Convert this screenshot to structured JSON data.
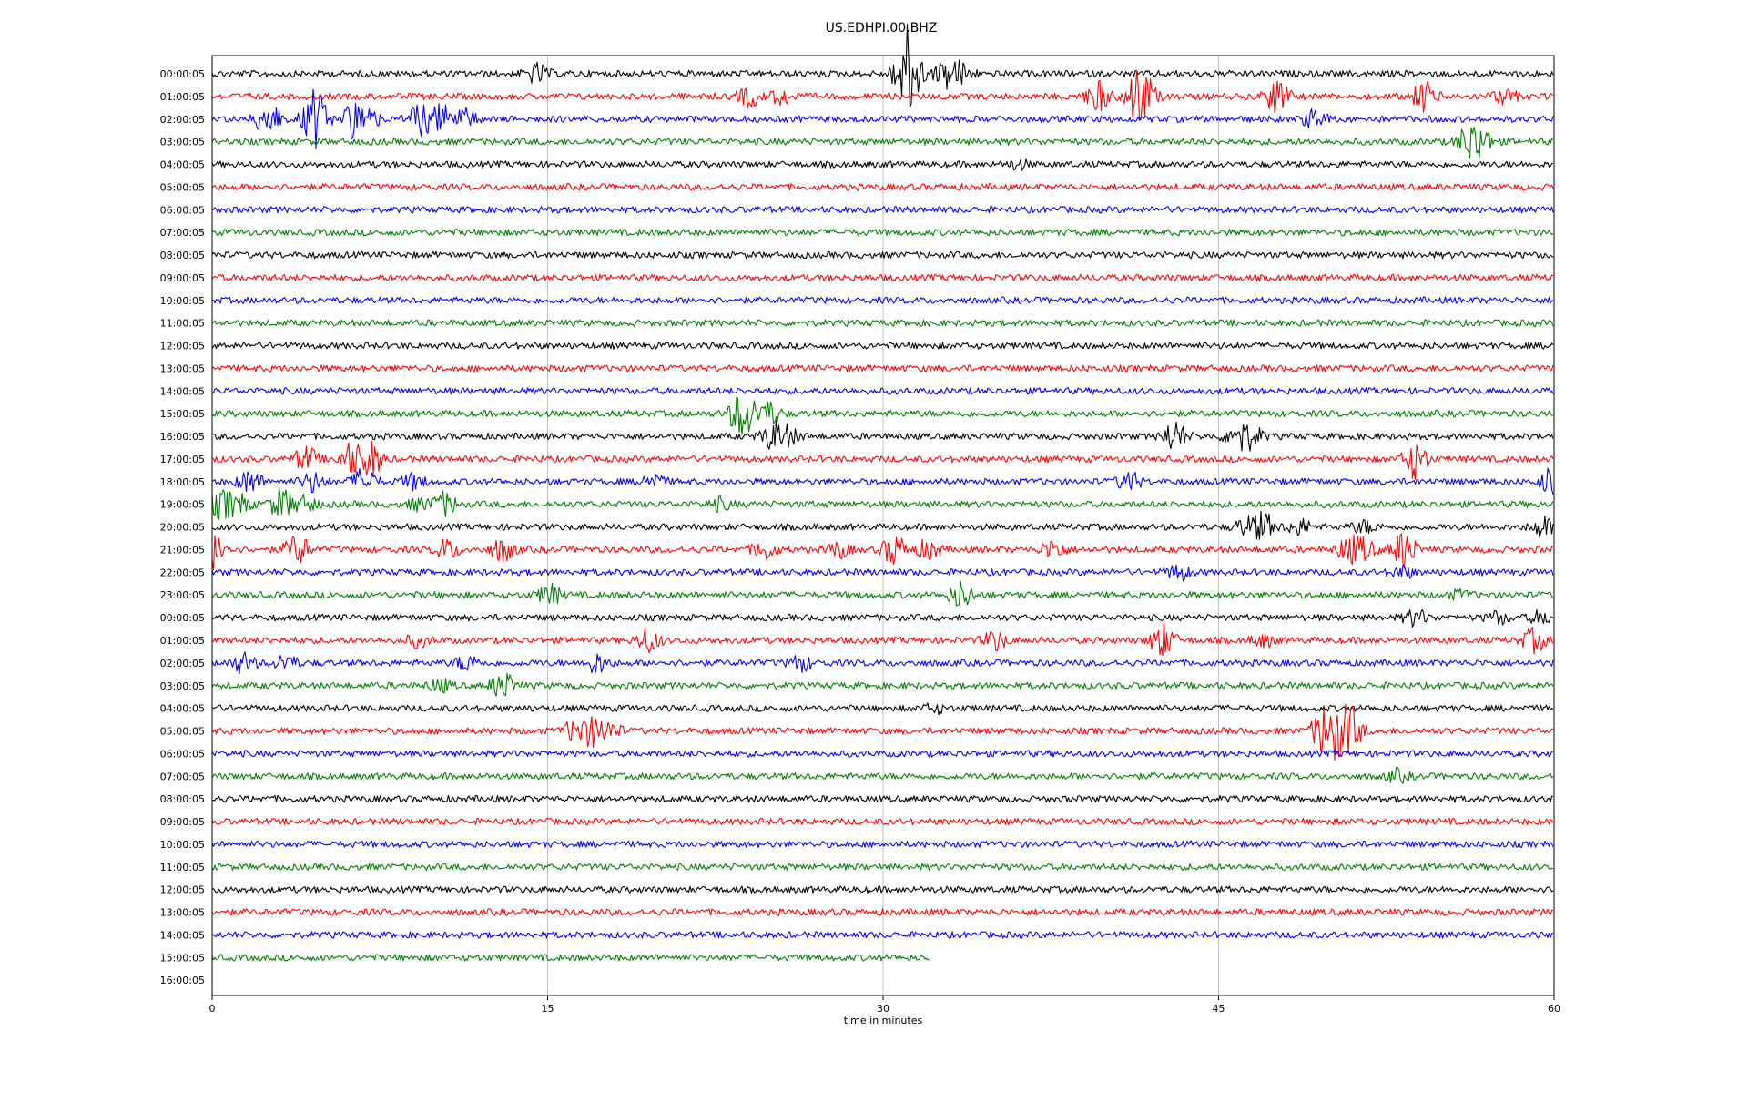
{
  "chart_data": {
    "type": "line",
    "title": "US.EDHPI.00.BHZ",
    "xlabel": "time in minutes",
    "xlim": [
      0,
      60
    ],
    "xticks": [
      0,
      15,
      30,
      45,
      60
    ],
    "xtick_labels": [
      "0",
      "15",
      "30",
      "45",
      "60"
    ],
    "grid": "vertical",
    "colors": [
      "#000000",
      "#ff0000",
      "#0000ff",
      "#008000"
    ],
    "rows": [
      {
        "label": "00:00:05",
        "end": 60,
        "events": [
          [
            14.5,
            0.5
          ],
          [
            31.0,
            1.8
          ],
          [
            31.3,
            1.0
          ],
          [
            32.8,
            0.7
          ],
          [
            33.5,
            0.5
          ]
        ]
      },
      {
        "label": "01:00:05",
        "end": 60,
        "events": [
          [
            24.0,
            0.5
          ],
          [
            25.5,
            0.4
          ],
          [
            39.6,
            0.8
          ],
          [
            41.3,
            1.0
          ],
          [
            41.7,
            0.9
          ],
          [
            47.6,
            0.9
          ],
          [
            54.2,
            0.8
          ],
          [
            57.8,
            0.4
          ]
        ]
      },
      {
        "label": "02:00:05",
        "end": 60,
        "events": [
          [
            2.5,
            1.0
          ],
          [
            4.6,
            1.6
          ],
          [
            6.3,
            0.9
          ],
          [
            7.0,
            0.5
          ],
          [
            9.3,
            0.8
          ],
          [
            10.3,
            0.7
          ],
          [
            11.3,
            0.5
          ],
          [
            49.3,
            0.5
          ]
        ]
      },
      {
        "label": "03:00:05",
        "end": 60,
        "events": [
          [
            56.2,
            0.9
          ],
          [
            56.8,
            0.6
          ]
        ]
      },
      {
        "label": "04:00:05",
        "end": 60,
        "events": [
          [
            36.0,
            0.2
          ]
        ]
      },
      {
        "label": "05:00:05",
        "end": 60,
        "events": []
      },
      {
        "label": "06:00:05",
        "end": 60,
        "events": []
      },
      {
        "label": "07:00:05",
        "end": 60,
        "events": []
      },
      {
        "label": "08:00:05",
        "end": 60,
        "events": []
      },
      {
        "label": "09:00:05",
        "end": 60,
        "events": []
      },
      {
        "label": "10:00:05",
        "end": 60,
        "events": []
      },
      {
        "label": "11:00:05",
        "end": 60,
        "events": []
      },
      {
        "label": "12:00:05",
        "end": 60,
        "events": []
      },
      {
        "label": "13:00:05",
        "end": 60,
        "events": []
      },
      {
        "label": "14:00:05",
        "end": 60,
        "events": []
      },
      {
        "label": "15:00:05",
        "end": 60,
        "events": [
          [
            23.5,
            0.6
          ],
          [
            23.9,
            0.8
          ],
          [
            24.9,
            0.6
          ]
        ]
      },
      {
        "label": "16:00:05",
        "end": 60,
        "events": [
          [
            25.1,
            0.7
          ],
          [
            25.8,
            0.4
          ],
          [
            43.0,
            0.8
          ],
          [
            45.8,
            0.7
          ],
          [
            46.5,
            0.5
          ]
        ]
      },
      {
        "label": "17:00:05",
        "end": 60,
        "events": [
          [
            4.2,
            0.6
          ],
          [
            6.2,
            0.8
          ],
          [
            7.1,
            0.9
          ],
          [
            53.8,
            1.0
          ]
        ]
      },
      {
        "label": "18:00:05",
        "end": 60,
        "events": [
          [
            1.7,
            0.6
          ],
          [
            4.5,
            0.5
          ],
          [
            6.8,
            0.7
          ],
          [
            9.0,
            0.4
          ],
          [
            19.7,
            0.4
          ],
          [
            41.0,
            0.5
          ],
          [
            59.9,
            0.7
          ]
        ]
      },
      {
        "label": "19:00:05",
        "end": 60,
        "events": [
          [
            0.4,
            0.7
          ],
          [
            1.2,
            0.5
          ],
          [
            3.1,
            0.8
          ],
          [
            4.2,
            0.4
          ],
          [
            9.3,
            0.3
          ],
          [
            10.4,
            0.6
          ],
          [
            22.7,
            0.3
          ]
        ]
      },
      {
        "label": "20:00:05",
        "end": 60,
        "events": [
          [
            46.2,
            0.4
          ],
          [
            47.0,
            0.7
          ],
          [
            48.6,
            0.4
          ],
          [
            51.5,
            0.3
          ],
          [
            59.5,
            0.5
          ]
        ]
      },
      {
        "label": "21:00:05",
        "end": 60,
        "events": [
          [
            0.1,
            1.0
          ],
          [
            3.8,
            0.8
          ],
          [
            10.5,
            0.5
          ],
          [
            13.0,
            0.6
          ],
          [
            24.7,
            0.5
          ],
          [
            28.0,
            0.4
          ],
          [
            30.5,
            0.8
          ],
          [
            32.0,
            0.5
          ],
          [
            37.6,
            0.5
          ],
          [
            50.8,
            0.6
          ],
          [
            51.5,
            0.5
          ],
          [
            53.3,
            1.0
          ]
        ]
      },
      {
        "label": "22:00:05",
        "end": 60,
        "events": [
          [
            43.2,
            0.4
          ],
          [
            53.2,
            0.3
          ]
        ]
      },
      {
        "label": "23:00:05",
        "end": 60,
        "events": [
          [
            15.1,
            0.5
          ],
          [
            33.5,
            0.7
          ],
          [
            55.8,
            0.2
          ]
        ]
      },
      {
        "label": "00:00:05",
        "end": 60,
        "events": [
          [
            53.8,
            0.4
          ],
          [
            57.5,
            0.3
          ],
          [
            59.4,
            0.3
          ]
        ]
      },
      {
        "label": "01:00:05",
        "end": 60,
        "events": [
          [
            9.2,
            0.3
          ],
          [
            19.5,
            0.6
          ],
          [
            35.0,
            0.5
          ],
          [
            42.5,
            0.9
          ],
          [
            47.0,
            0.3
          ],
          [
            59.1,
            0.6
          ]
        ]
      },
      {
        "label": "02:00:05",
        "end": 60,
        "events": [
          [
            1.4,
            0.5
          ],
          [
            3.3,
            0.4
          ],
          [
            11.4,
            0.4
          ],
          [
            17.2,
            0.5
          ],
          [
            26.3,
            0.4
          ]
        ]
      },
      {
        "label": "03:00:05",
        "end": 60,
        "events": [
          [
            10.2,
            0.3
          ],
          [
            13.0,
            0.7
          ]
        ]
      },
      {
        "label": "04:00:05",
        "end": 60,
        "events": [
          [
            32.3,
            0.2
          ]
        ]
      },
      {
        "label": "05:00:05",
        "end": 60,
        "events": [
          [
            16.2,
            0.5
          ],
          [
            17.0,
            0.7
          ],
          [
            17.8,
            0.4
          ],
          [
            49.7,
            1.2
          ],
          [
            50.3,
            0.9
          ],
          [
            50.9,
            1.1
          ]
        ]
      },
      {
        "label": "06:00:05",
        "end": 60,
        "events": []
      },
      {
        "label": "07:00:05",
        "end": 60,
        "events": [
          [
            53.0,
            0.3
          ]
        ]
      },
      {
        "label": "08:00:05",
        "end": 60,
        "events": []
      },
      {
        "label": "09:00:05",
        "end": 60,
        "events": []
      },
      {
        "label": "10:00:05",
        "end": 60,
        "events": []
      },
      {
        "label": "11:00:05",
        "end": 60,
        "events": []
      },
      {
        "label": "12:00:05",
        "end": 60,
        "events": []
      },
      {
        "label": "13:00:05",
        "end": 60,
        "events": []
      },
      {
        "label": "14:00:05",
        "end": 60,
        "events": []
      },
      {
        "label": "15:00:05",
        "end": 32.1,
        "events": []
      },
      {
        "label": "16:00:05",
        "end": 0,
        "events": []
      }
    ]
  }
}
